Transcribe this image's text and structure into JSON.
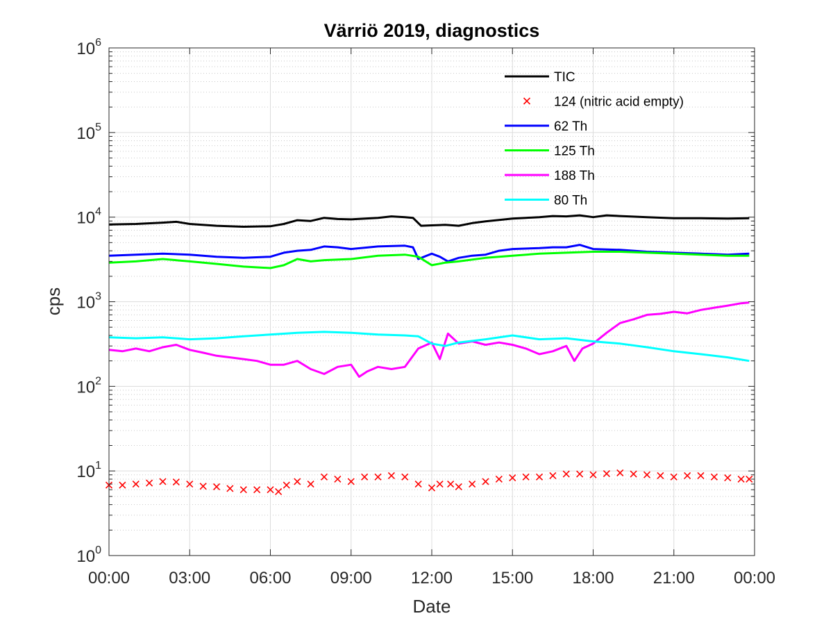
{
  "chart_data": {
    "type": "line",
    "title": "Värriö 2019, diagnostics",
    "xlabel": "Date",
    "ylabel": "cps",
    "yscale": "log",
    "ylim": [
      1,
      1000000
    ],
    "xlim": [
      0,
      24
    ],
    "grid": true,
    "legend_position": "top-right",
    "x_ticks": [
      "00:00",
      "03:00",
      "06:00",
      "09:00",
      "12:00",
      "15:00",
      "18:00",
      "21:00",
      "00:00"
    ],
    "y_ticks": [
      {
        "base": "10",
        "exp": "0"
      },
      {
        "base": "10",
        "exp": "1"
      },
      {
        "base": "10",
        "exp": "2"
      },
      {
        "base": "10",
        "exp": "3"
      },
      {
        "base": "10",
        "exp": "4"
      },
      {
        "base": "10",
        "exp": "5"
      },
      {
        "base": "10",
        "exp": "6"
      }
    ],
    "series": [
      {
        "name": "TIC",
        "color": "#000000",
        "style": "line",
        "points": [
          [
            0,
            8200
          ],
          [
            1,
            8300
          ],
          [
            2,
            8600
          ],
          [
            2.5,
            8800
          ],
          [
            3,
            8300
          ],
          [
            4,
            7900
          ],
          [
            5,
            7700
          ],
          [
            6,
            7800
          ],
          [
            6.5,
            8300
          ],
          [
            7,
            9200
          ],
          [
            7.5,
            9000
          ],
          [
            8,
            9800
          ],
          [
            8.5,
            9500
          ],
          [
            9,
            9400
          ],
          [
            10,
            9800
          ],
          [
            10.5,
            10200
          ],
          [
            11,
            10000
          ],
          [
            11.3,
            9800
          ],
          [
            11.6,
            7900
          ],
          [
            12,
            8000
          ],
          [
            12.5,
            8100
          ],
          [
            13,
            7900
          ],
          [
            13.5,
            8500
          ],
          [
            14,
            8900
          ],
          [
            15,
            9600
          ],
          [
            15.5,
            9800
          ],
          [
            16,
            10000
          ],
          [
            16.5,
            10300
          ],
          [
            17,
            10200
          ],
          [
            17.5,
            10500
          ],
          [
            18,
            10000
          ],
          [
            18.5,
            10500
          ],
          [
            19,
            10300
          ],
          [
            20,
            10000
          ],
          [
            21,
            9700
          ],
          [
            22,
            9700
          ],
          [
            23,
            9600
          ],
          [
            23.8,
            9700
          ]
        ]
      },
      {
        "name": "124 (nitric acid empty)",
        "color": "#ff0000",
        "style": "x",
        "points": [
          [
            0,
            6.8
          ],
          [
            0.5,
            6.8
          ],
          [
            1,
            7.0
          ],
          [
            1.5,
            7.2
          ],
          [
            2,
            7.5
          ],
          [
            2.5,
            7.4
          ],
          [
            3,
            7.0
          ],
          [
            3.5,
            6.6
          ],
          [
            4,
            6.5
          ],
          [
            4.5,
            6.2
          ],
          [
            5,
            6.0
          ],
          [
            5.5,
            6.0
          ],
          [
            6,
            6.0
          ],
          [
            6.3,
            5.7
          ],
          [
            6.6,
            6.8
          ],
          [
            7,
            7.5
          ],
          [
            7.5,
            7.0
          ],
          [
            8,
            8.5
          ],
          [
            8.5,
            8.0
          ],
          [
            9,
            7.5
          ],
          [
            9.5,
            8.5
          ],
          [
            10,
            8.5
          ],
          [
            10.5,
            8.8
          ],
          [
            11,
            8.5
          ],
          [
            11.5,
            7.0
          ],
          [
            12,
            6.3
          ],
          [
            12.3,
            7.0
          ],
          [
            12.7,
            7.0
          ],
          [
            13,
            6.5
          ],
          [
            13.5,
            7.0
          ],
          [
            14,
            7.5
          ],
          [
            14.5,
            8.0
          ],
          [
            15,
            8.3
          ],
          [
            15.5,
            8.5
          ],
          [
            16,
            8.5
          ],
          [
            16.5,
            8.8
          ],
          [
            17,
            9.2
          ],
          [
            17.5,
            9.2
          ],
          [
            18,
            9.0
          ],
          [
            18.5,
            9.3
          ],
          [
            19,
            9.5
          ],
          [
            19.5,
            9.2
          ],
          [
            20,
            9.0
          ],
          [
            20.5,
            8.8
          ],
          [
            21,
            8.5
          ],
          [
            21.5,
            8.8
          ],
          [
            22,
            8.8
          ],
          [
            22.5,
            8.5
          ],
          [
            23,
            8.3
          ],
          [
            23.5,
            8.0
          ],
          [
            23.8,
            8.0
          ]
        ]
      },
      {
        "name": "62 Th",
        "color": "#0000ff",
        "style": "line",
        "points": [
          [
            0,
            3500
          ],
          [
            1,
            3600
          ],
          [
            2,
            3700
          ],
          [
            3,
            3600
          ],
          [
            4,
            3400
          ],
          [
            5,
            3300
          ],
          [
            6,
            3400
          ],
          [
            6.5,
            3800
          ],
          [
            7,
            4000
          ],
          [
            7.5,
            4100
          ],
          [
            8,
            4500
          ],
          [
            8.5,
            4400
          ],
          [
            9,
            4200
          ],
          [
            10,
            4500
          ],
          [
            11,
            4600
          ],
          [
            11.3,
            4400
          ],
          [
            11.5,
            3200
          ],
          [
            12,
            3700
          ],
          [
            12.3,
            3400
          ],
          [
            12.6,
            3000
          ],
          [
            13,
            3300
          ],
          [
            13.5,
            3500
          ],
          [
            14,
            3600
          ],
          [
            14.5,
            4000
          ],
          [
            15,
            4200
          ],
          [
            16,
            4300
          ],
          [
            16.5,
            4400
          ],
          [
            17,
            4400
          ],
          [
            17.5,
            4700
          ],
          [
            18,
            4200
          ],
          [
            19,
            4100
          ],
          [
            20,
            3900
          ],
          [
            21,
            3800
          ],
          [
            22,
            3700
          ],
          [
            23,
            3600
          ],
          [
            23.8,
            3700
          ]
        ]
      },
      {
        "name": "125 Th",
        "color": "#00ff00",
        "style": "line",
        "points": [
          [
            0,
            2900
          ],
          [
            1,
            3000
          ],
          [
            2,
            3200
          ],
          [
            3,
            3000
          ],
          [
            4,
            2800
          ],
          [
            5,
            2600
          ],
          [
            6,
            2500
          ],
          [
            6.5,
            2700
          ],
          [
            7,
            3200
          ],
          [
            7.5,
            3000
          ],
          [
            8,
            3100
          ],
          [
            9,
            3200
          ],
          [
            10,
            3500
          ],
          [
            11,
            3600
          ],
          [
            11.5,
            3400
          ],
          [
            12,
            2700
          ],
          [
            12.5,
            2900
          ],
          [
            13,
            3000
          ],
          [
            14,
            3300
          ],
          [
            15,
            3500
          ],
          [
            16,
            3700
          ],
          [
            17,
            3800
          ],
          [
            18,
            3900
          ],
          [
            19,
            3900
          ],
          [
            20,
            3800
          ],
          [
            21,
            3700
          ],
          [
            22,
            3600
          ],
          [
            23,
            3500
          ],
          [
            23.8,
            3500
          ]
        ]
      },
      {
        "name": "188 Th",
        "color": "#ff00ff",
        "style": "line",
        "points": [
          [
            0,
            270
          ],
          [
            0.5,
            260
          ],
          [
            1,
            280
          ],
          [
            1.5,
            260
          ],
          [
            2,
            290
          ],
          [
            2.5,
            310
          ],
          [
            3,
            270
          ],
          [
            3.5,
            250
          ],
          [
            4,
            230
          ],
          [
            4.5,
            220
          ],
          [
            5,
            210
          ],
          [
            5.5,
            200
          ],
          [
            6,
            180
          ],
          [
            6.5,
            180
          ],
          [
            7,
            200
          ],
          [
            7.5,
            160
          ],
          [
            8,
            140
          ],
          [
            8.5,
            170
          ],
          [
            9,
            180
          ],
          [
            9.3,
            130
          ],
          [
            9.6,
            150
          ],
          [
            10,
            170
          ],
          [
            10.5,
            160
          ],
          [
            11,
            170
          ],
          [
            11.5,
            280
          ],
          [
            12,
            330
          ],
          [
            12.3,
            210
          ],
          [
            12.6,
            420
          ],
          [
            13,
            320
          ],
          [
            13.5,
            340
          ],
          [
            14,
            310
          ],
          [
            14.5,
            330
          ],
          [
            15,
            310
          ],
          [
            15.5,
            280
          ],
          [
            16,
            240
          ],
          [
            16.5,
            260
          ],
          [
            17,
            300
          ],
          [
            17.3,
            200
          ],
          [
            17.6,
            280
          ],
          [
            18,
            320
          ],
          [
            18.5,
            430
          ],
          [
            19,
            560
          ],
          [
            19.5,
            620
          ],
          [
            20,
            700
          ],
          [
            20.5,
            720
          ],
          [
            21,
            760
          ],
          [
            21.5,
            730
          ],
          [
            22,
            800
          ],
          [
            22.5,
            850
          ],
          [
            23,
            900
          ],
          [
            23.5,
            960
          ],
          [
            23.8,
            980
          ]
        ]
      },
      {
        "name": "80 Th",
        "color": "#00ffff",
        "style": "line",
        "points": [
          [
            0,
            380
          ],
          [
            1,
            370
          ],
          [
            2,
            380
          ],
          [
            3,
            360
          ],
          [
            4,
            370
          ],
          [
            5,
            390
          ],
          [
            6,
            410
          ],
          [
            7,
            430
          ],
          [
            8,
            440
          ],
          [
            9,
            430
          ],
          [
            10,
            410
          ],
          [
            11,
            400
          ],
          [
            11.5,
            390
          ],
          [
            12,
            320
          ],
          [
            12.5,
            300
          ],
          [
            13,
            330
          ],
          [
            14,
            360
          ],
          [
            15,
            400
          ],
          [
            16,
            360
          ],
          [
            17,
            370
          ],
          [
            18,
            340
          ],
          [
            19,
            320
          ],
          [
            20,
            290
          ],
          [
            21,
            260
          ],
          [
            22,
            240
          ],
          [
            23,
            220
          ],
          [
            23.8,
            200
          ]
        ]
      }
    ]
  }
}
